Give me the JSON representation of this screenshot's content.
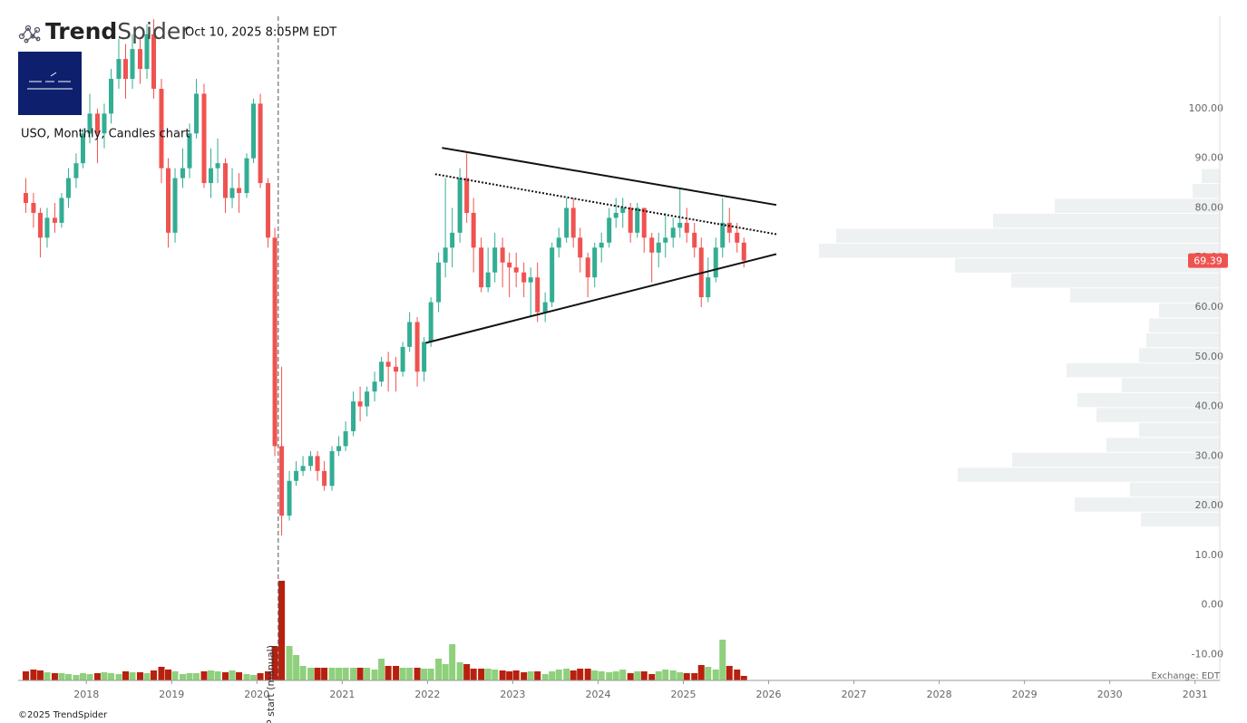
{
  "header": {
    "brand_bold": "Trend",
    "brand_light": "Spider",
    "timestamp": "Oct 10, 2025 8:05PM EDT",
    "exchange": "Exchange: EDT",
    "copyright": "©2025 TrendSpider"
  },
  "chart_data": {
    "type": "candlestick",
    "title": "USO, Monthly, Candles chart",
    "x": [
      2017.29,
      2017.38,
      2017.46,
      2017.54,
      2017.63,
      2017.71,
      2017.79,
      2017.88,
      2017.96,
      2018.04,
      2018.13,
      2018.21,
      2018.29,
      2018.38,
      2018.46,
      2018.54,
      2018.63,
      2018.71,
      2018.79,
      2018.88,
      2018.96,
      2019.04,
      2019.13,
      2019.21,
      2019.29,
      2019.38,
      2019.46,
      2019.54,
      2019.63,
      2019.71,
      2019.79,
      2019.88,
      2019.96,
      2020.04,
      2020.13,
      2020.21,
      2020.29,
      2020.38,
      2020.46,
      2020.54,
      2020.63,
      2020.71,
      2020.79,
      2020.88,
      2020.96,
      2021.04,
      2021.13,
      2021.21,
      2021.29,
      2021.38,
      2021.46,
      2021.54,
      2021.63,
      2021.71,
      2021.79,
      2021.88,
      2021.96,
      2022.04,
      2022.13,
      2022.21,
      2022.29,
      2022.38,
      2022.46,
      2022.54,
      2022.63,
      2022.71,
      2022.79,
      2022.88,
      2022.96,
      2023.04,
      2023.13,
      2023.21,
      2023.29,
      2023.38,
      2023.46,
      2023.54,
      2023.63,
      2023.71,
      2023.79,
      2023.88,
      2023.96,
      2024.04,
      2024.13,
      2024.21,
      2024.29,
      2024.38,
      2024.46,
      2024.54,
      2024.63,
      2024.71,
      2024.79,
      2024.88,
      2024.96,
      2025.04,
      2025.13,
      2025.21,
      2025.29,
      2025.38,
      2025.46,
      2025.54,
      2025.63,
      2025.71
    ],
    "open": [
      83,
      81,
      79,
      74,
      78,
      77,
      82,
      86,
      89,
      95,
      99,
      95,
      99,
      106,
      110,
      106,
      112,
      108,
      115,
      104,
      88,
      75,
      86,
      88,
      95,
      103,
      85,
      88,
      89,
      82,
      84,
      83,
      90,
      101,
      85,
      74,
      32,
      18,
      25,
      27,
      28,
      30,
      27,
      24,
      31,
      32,
      35,
      41,
      40,
      43,
      45,
      49,
      48,
      47,
      52,
      57,
      47,
      53,
      61,
      69,
      72,
      75,
      86,
      79,
      72,
      64,
      67,
      72,
      69,
      68,
      67,
      65,
      66,
      59,
      61,
      72,
      74,
      80,
      74,
      70,
      66,
      72,
      73,
      78,
      79,
      80,
      75,
      80,
      74,
      71,
      73,
      74,
      76,
      77,
      75,
      72,
      62,
      66,
      72,
      77,
      75,
      73
    ],
    "high": [
      86,
      83,
      80,
      80,
      81,
      83,
      88,
      91,
      96,
      103,
      100,
      101,
      108,
      114,
      113,
      115,
      114,
      117,
      118,
      106,
      90,
      88,
      92,
      97,
      106,
      105,
      92,
      94,
      90,
      88,
      87,
      91,
      102,
      103,
      86,
      76,
      48,
      27,
      29,
      30,
      31,
      31,
      29,
      32,
      34,
      37,
      43,
      44,
      44,
      47,
      50,
      51,
      50,
      53,
      59,
      58,
      54,
      62,
      71,
      86,
      80,
      88,
      91,
      82,
      74,
      72,
      75,
      74,
      71,
      71,
      69,
      68,
      69,
      63,
      73,
      76,
      82,
      82,
      76,
      71,
      73,
      75,
      80,
      82,
      82,
      81,
      81,
      80,
      75,
      75,
      79,
      78,
      84,
      80,
      77,
      74,
      70,
      74,
      82,
      80,
      77,
      74
    ],
    "low": [
      79,
      76,
      70,
      72,
      75,
      76,
      80,
      84,
      88,
      93,
      89,
      92,
      97,
      104,
      102,
      104,
      105,
      106,
      102,
      85,
      72,
      73,
      84,
      86,
      94,
      84,
      82,
      85,
      79,
      80,
      79,
      82,
      89,
      84,
      72,
      30,
      14,
      17,
      24,
      26,
      27,
      25,
      23,
      23,
      30,
      31,
      34,
      37,
      38,
      41,
      44,
      43,
      43,
      46,
      51,
      44,
      45,
      52,
      59,
      66,
      68,
      73,
      77,
      67,
      63,
      63,
      65,
      64,
      62,
      64,
      62,
      58,
      57,
      57,
      60,
      70,
      73,
      72,
      67,
      62,
      64,
      69,
      72,
      76,
      76,
      73,
      74,
      71,
      65,
      68,
      70,
      72,
      74,
      73,
      70,
      60,
      61,
      65,
      70,
      73,
      71,
      68
    ],
    "close": [
      81,
      79,
      74,
      78,
      77,
      82,
      86,
      89,
      95,
      99,
      95,
      99,
      106,
      110,
      106,
      112,
      108,
      115,
      104,
      88,
      75,
      86,
      88,
      95,
      103,
      85,
      88,
      89,
      82,
      84,
      83,
      90,
      101,
      85,
      74,
      32,
      18,
      25,
      27,
      28,
      30,
      27,
      24,
      31,
      32,
      35,
      41,
      40,
      43,
      45,
      49,
      48,
      47,
      52,
      57,
      47,
      53,
      61,
      69,
      72,
      75,
      86,
      79,
      72,
      64,
      67,
      72,
      69,
      68,
      67,
      65,
      66,
      59,
      61,
      72,
      74,
      80,
      74,
      70,
      66,
      72,
      73,
      78,
      79,
      80,
      75,
      80,
      74,
      71,
      73,
      74,
      76,
      77,
      75,
      72,
      62,
      66,
      72,
      77,
      75,
      73,
      69.39
    ],
    "volume": [
      10,
      12,
      11,
      9,
      8,
      8,
      7,
      6,
      8,
      7,
      8,
      9,
      8,
      7,
      10,
      9,
      9,
      8,
      11,
      15,
      12,
      10,
      7,
      8,
      8,
      10,
      11,
      10,
      9,
      11,
      9,
      7,
      6,
      8,
      10,
      38,
      110,
      38,
      28,
      16,
      14,
      14,
      14,
      14,
      14,
      14,
      14,
      14,
      14,
      12,
      24,
      16,
      16,
      14,
      14,
      14,
      13,
      13,
      24,
      18,
      40,
      20,
      18,
      13,
      13,
      13,
      12,
      11,
      10,
      11,
      9,
      10,
      10,
      7,
      10,
      12,
      13,
      11,
      13,
      13,
      11,
      10,
      9,
      10,
      12,
      8,
      10,
      10,
      7,
      10,
      12,
      11,
      9,
      8,
      8,
      17,
      15,
      12,
      45,
      16,
      12,
      5
    ],
    "volume_lim": [
      0,
      110
    ],
    "up_color": "#33ad93",
    "down_color": "#ef5350",
    "volume_up_color": "#8fd07c",
    "volume_down_color": "#b8200e",
    "xlim": [
      2017.2,
      2031.29
    ],
    "ylim": [
      -15.2,
      118.6
    ],
    "xticks": [
      2018,
      2019,
      2020,
      2021,
      2022,
      2023,
      2024,
      2025,
      2026,
      2027,
      2028,
      2029,
      2030,
      2031
    ],
    "yticks": [
      {
        "value": -10,
        "label": "-10.00"
      },
      {
        "value": 0,
        "label": "0.00"
      },
      {
        "value": 10,
        "label": "10.00"
      },
      {
        "value": 20,
        "label": "20.00"
      },
      {
        "value": 30,
        "label": "30.00"
      },
      {
        "value": 40,
        "label": "40.00"
      },
      {
        "value": 50,
        "label": "50.00"
      },
      {
        "value": 60,
        "label": "60.00"
      },
      {
        "value": 70,
        "label": "70.00"
      },
      {
        "value": 80,
        "label": "80.00"
      },
      {
        "value": 90,
        "label": "90.00"
      },
      {
        "value": 100,
        "label": "100.00"
      }
    ],
    "profile": {
      "bins": [
        15.7,
        18.71,
        21.72,
        24.73,
        27.74,
        30.75,
        33.76,
        36.77,
        39.78,
        42.79,
        45.8,
        48.81,
        51.82,
        54.83,
        57.84,
        60.85,
        63.86,
        66.87,
        69.88,
        72.89,
        75.9,
        78.91,
        81.92,
        84.93,
        87.94
      ],
      "values": [
        87,
        160,
        99,
        289,
        229,
        125,
        89,
        136,
        157,
        108,
        169,
        89,
        81,
        78,
        67,
        165,
        230,
        292,
        442,
        423,
        250,
        182,
        30,
        20
      ],
      "xlim": [
        0,
        1325
      ],
      "color": "#eef1f2"
    },
    "trendlines": [
      {
        "style": "solid",
        "x": [
          2022.17,
          2026.09
        ],
        "y": [
          92.1,
          80.6
        ]
      },
      {
        "style": "dotted",
        "x": [
          2022.09,
          2026.09
        ],
        "y": [
          86.8,
          74.7
        ]
      },
      {
        "style": "solid",
        "x": [
          2021.98,
          2026.09
        ],
        "y": [
          52.8,
          70.7
        ]
      }
    ],
    "annotation": {
      "x": 2020.25,
      "text": "P start (manual)"
    },
    "last_price_color": "#ef5350"
  }
}
